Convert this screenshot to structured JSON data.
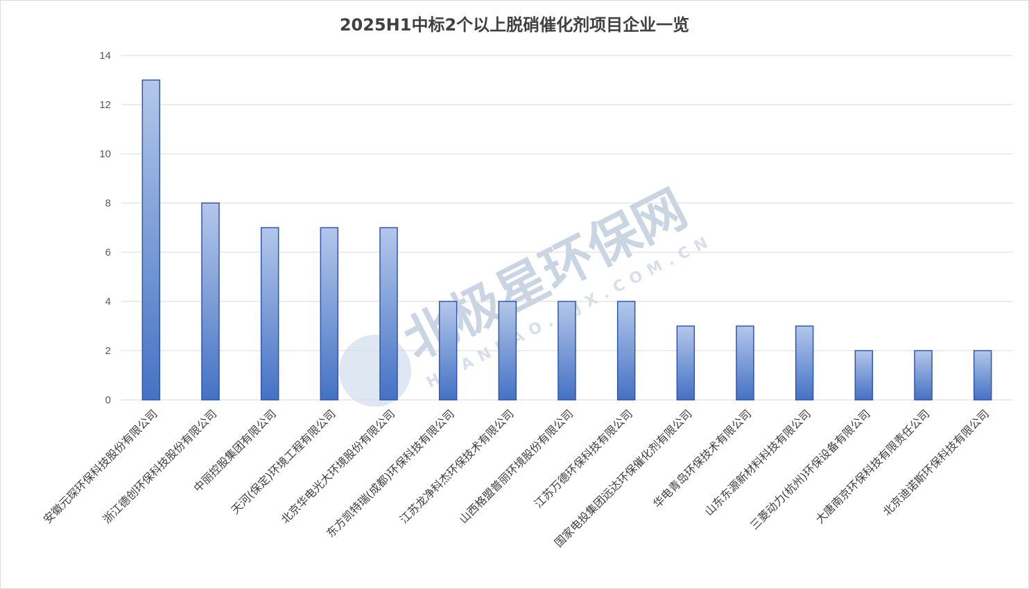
{
  "chart_data": {
    "type": "bar",
    "title": "2025H1中标2个以上脱硝催化剂项目企业一览",
    "categories": [
      "安徽元琛环保科技股份有限公司",
      "浙江德创环保科技股份有限公司",
      "中丽控股集团有限公司",
      "天河(保定)环境工程有限公司",
      "北京华电光大环境股份有限公司",
      "东方凯特瑞(成都)环保科技有限公司",
      "江苏龙净科杰环保技术有限公司",
      "山西格盟普丽环境股份有限公司",
      "江苏万德环保科技有限公司",
      "国家电投集团远达环保催化剂有限公司",
      "华电青岛环保技术有限公司",
      "山东东源新材料科技有限公司",
      "三菱动力(杭州)环保设备有限公司",
      "大唐南京环保科技有限责任公司",
      "北京迪诺斯环保科技有限公司"
    ],
    "values": [
      13,
      8,
      7,
      7,
      7,
      4,
      4,
      4,
      4,
      3,
      3,
      3,
      2,
      2,
      2
    ],
    "yticks": [
      "0",
      "2",
      "4",
      "6",
      "8",
      "10",
      "12",
      "14"
    ],
    "ylim": [
      0,
      14
    ],
    "grid": true,
    "legend": "none",
    "colors": {
      "bar_top": "#b4c7ea",
      "bar_bottom": "#4472c4",
      "bar_border": "#2f55b0",
      "grid": "#d9d9d9"
    }
  },
  "watermark": {
    "main": "北极星环保网",
    "sub": "HUANBAO.BJX.COM.CN"
  }
}
